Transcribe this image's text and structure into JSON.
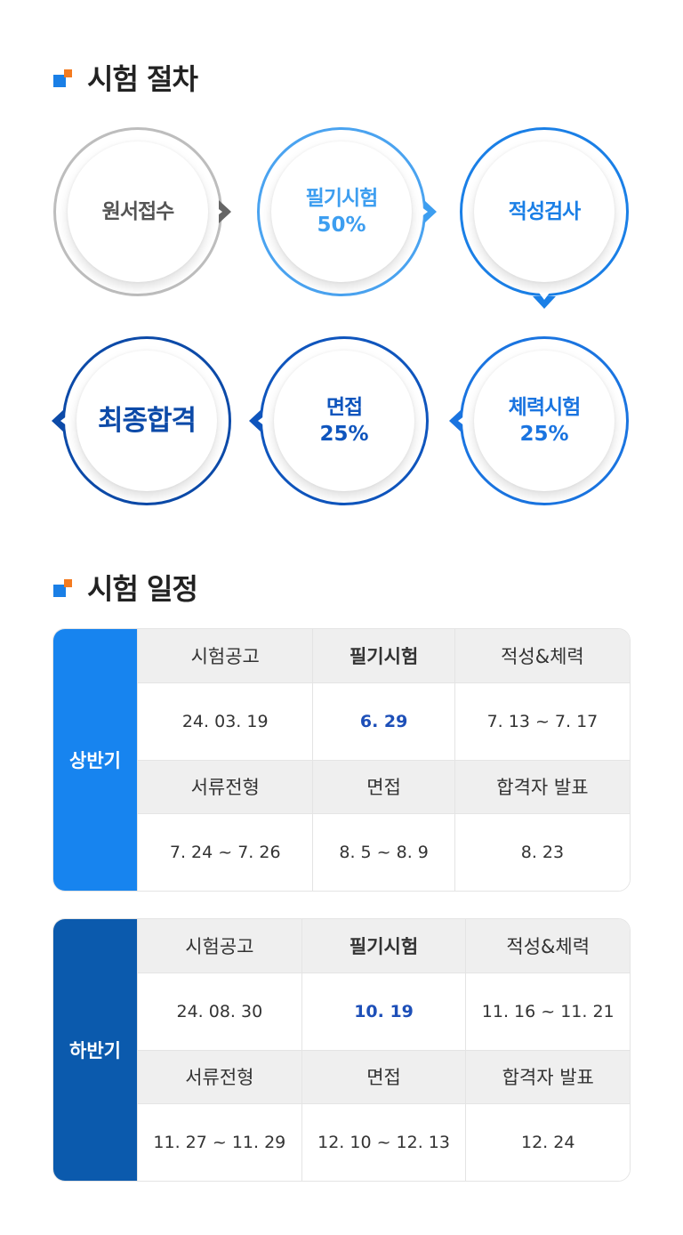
{
  "process": {
    "title": "시험 절차",
    "steps": [
      {
        "label": "원서접수",
        "pct": ""
      },
      {
        "label": "필기시험",
        "pct": "50%"
      },
      {
        "label": "적성검사",
        "pct": ""
      },
      {
        "label": "체력시험",
        "pct": "25%"
      },
      {
        "label": "면접",
        "pct": "25%"
      },
      {
        "label": "최종합격",
        "pct": ""
      }
    ]
  },
  "schedule": {
    "title": "시험 일정",
    "first_half": {
      "period": "상반기",
      "headers1": [
        "시험공고",
        "필기시험",
        "적성&체력"
      ],
      "values1": [
        "24. 03. 19",
        "6. 29",
        "7. 13 ~ 7. 17"
      ],
      "headers2": [
        "서류전형",
        "면접",
        "합격자 발표"
      ],
      "values2": [
        "7. 24 ~ 7. 26",
        "8. 5 ~ 8. 9",
        "8. 23"
      ]
    },
    "second_half": {
      "period": "하반기",
      "headers1": [
        "시험공고",
        "필기시험",
        "적성&체력"
      ],
      "values1": [
        "24. 08. 30",
        "10. 19",
        "11. 16 ~ 11. 21"
      ],
      "headers2": [
        "서류전형",
        "면접",
        "합격자 발표"
      ],
      "values2": [
        "11. 27 ~ 11. 29",
        "12. 10 ~ 12. 13",
        "12. 24"
      ]
    }
  },
  "colors": {
    "accent_blue": "#1a7fe6",
    "accent_orange": "#f47b20",
    "period_first": "#1784ef",
    "period_second": "#0b5aad",
    "highlight_text": "#1d4fb8"
  }
}
